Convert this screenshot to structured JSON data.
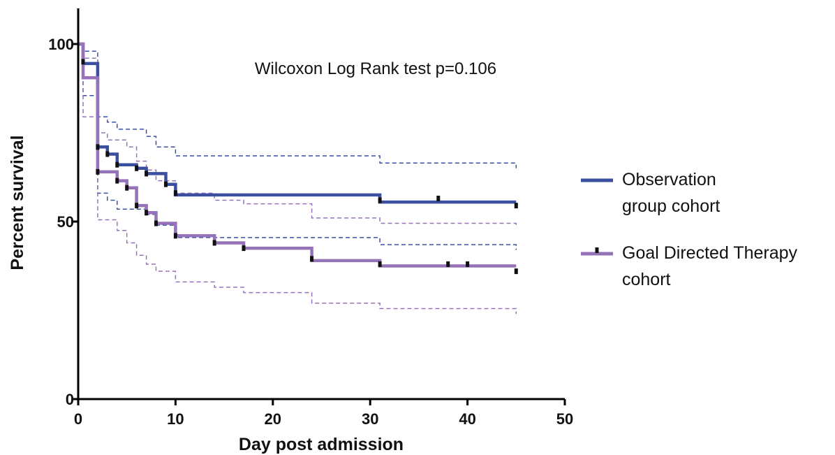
{
  "chart_data": {
    "type": "line",
    "subtype": "kaplan-meier step",
    "title": "",
    "annotation": "Wilcoxon Log Rank  test p=0.106",
    "xlabel": "Day post admission",
    "ylabel": "Percent survival",
    "xlim": [
      0,
      50
    ],
    "ylim": [
      0,
      100
    ],
    "xticks": [
      0,
      10,
      20,
      30,
      40,
      50
    ],
    "yticks": [
      0,
      50,
      100
    ],
    "grid": false,
    "legend": {
      "placement": "right",
      "entries": [
        {
          "series": 0,
          "lines": [
            "Observation",
            "group cohort"
          ]
        },
        {
          "series": 1,
          "lines": [
            "Goal Directed Therapy",
            "cohort"
          ]
        }
      ]
    },
    "series": [
      {
        "name": "Observation group cohort",
        "color": "#3a4fa0",
        "ci_color": "#3a4fa0",
        "steps": [
          [
            0,
            100
          ],
          [
            0.5,
            100
          ],
          [
            0.5,
            94.5
          ],
          [
            2,
            94.5
          ],
          [
            2,
            71
          ],
          [
            3,
            71
          ],
          [
            3,
            69
          ],
          [
            4,
            69
          ],
          [
            4,
            66
          ],
          [
            6,
            66
          ],
          [
            6,
            65
          ],
          [
            7,
            65
          ],
          [
            7,
            63.5
          ],
          [
            9,
            63.5
          ],
          [
            9,
            60.5
          ],
          [
            10,
            60.5
          ],
          [
            10,
            57.5
          ],
          [
            31,
            57.5
          ],
          [
            31,
            55.5
          ],
          [
            45,
            55.5
          ]
        ],
        "censor_marks": [
          [
            0.5,
            95
          ],
          [
            2,
            71
          ],
          [
            3,
            69
          ],
          [
            4,
            66
          ],
          [
            6,
            65
          ],
          [
            7,
            63.5
          ],
          [
            9,
            60.5
          ],
          [
            10,
            58
          ],
          [
            31,
            56
          ],
          [
            37,
            56.5
          ],
          [
            45,
            54.5
          ]
        ],
        "ci_upper": [
          [
            0,
            100
          ],
          [
            0.5,
            100
          ],
          [
            0.5,
            98
          ],
          [
            2,
            98
          ],
          [
            2,
            79.5
          ],
          [
            3,
            79.5
          ],
          [
            3,
            78
          ],
          [
            4,
            78
          ],
          [
            4,
            76
          ],
          [
            7,
            76
          ],
          [
            7,
            74
          ],
          [
            8,
            74
          ],
          [
            8,
            71
          ],
          [
            10,
            71
          ],
          [
            10,
            68.5
          ],
          [
            31,
            68.5
          ],
          [
            31,
            66.5
          ],
          [
            45,
            66.5
          ],
          [
            45,
            65
          ]
        ],
        "ci_lower": [
          [
            0,
            100
          ],
          [
            0.5,
            100
          ],
          [
            0.5,
            85.5
          ],
          [
            2,
            85.5
          ],
          [
            2,
            58
          ],
          [
            3,
            58
          ],
          [
            3,
            56
          ],
          [
            4,
            56
          ],
          [
            4,
            53.5
          ],
          [
            7,
            53.5
          ],
          [
            7,
            52
          ],
          [
            8,
            52
          ],
          [
            8,
            49
          ],
          [
            10,
            49
          ],
          [
            10,
            45.5
          ],
          [
            31,
            45.5
          ],
          [
            31,
            43.5
          ],
          [
            45,
            43.5
          ],
          [
            45,
            42
          ]
        ]
      },
      {
        "name": "Goal Directed Therapy cohort",
        "color": "#9673b9",
        "ci_color": "#9673b9",
        "steps": [
          [
            0,
            100
          ],
          [
            0.5,
            100
          ],
          [
            0.5,
            90.5
          ],
          [
            2,
            90.5
          ],
          [
            2,
            64
          ],
          [
            4,
            64
          ],
          [
            4,
            61.5
          ],
          [
            5,
            61.5
          ],
          [
            5,
            59.5
          ],
          [
            6,
            59.5
          ],
          [
            6,
            54.5
          ],
          [
            7,
            54.5
          ],
          [
            7,
            52.5
          ],
          [
            8,
            52.5
          ],
          [
            8,
            49.5
          ],
          [
            10,
            49.5
          ],
          [
            10,
            46
          ],
          [
            14,
            46
          ],
          [
            14,
            44
          ],
          [
            17,
            44
          ],
          [
            17,
            42.5
          ],
          [
            24,
            42.5
          ],
          [
            24,
            39
          ],
          [
            31,
            39
          ],
          [
            31,
            37.5
          ],
          [
            45,
            37.5
          ]
        ],
        "censor_marks": [
          [
            2,
            64
          ],
          [
            4,
            61.5
          ],
          [
            5,
            59.5
          ],
          [
            6,
            54.5
          ],
          [
            7,
            52.5
          ],
          [
            8,
            49.5
          ],
          [
            10,
            46
          ],
          [
            14,
            44
          ],
          [
            17,
            42.5
          ],
          [
            24,
            39.5
          ],
          [
            31,
            38
          ],
          [
            38,
            38
          ],
          [
            40,
            38
          ],
          [
            45,
            36
          ]
        ],
        "ci_upper": [
          [
            0,
            100
          ],
          [
            0.5,
            100
          ],
          [
            0.5,
            96
          ],
          [
            2,
            96
          ],
          [
            2,
            75
          ],
          [
            3,
            75
          ],
          [
            3,
            73
          ],
          [
            5,
            73
          ],
          [
            5,
            71
          ],
          [
            6,
            71
          ],
          [
            6,
            67
          ],
          [
            7,
            67
          ],
          [
            7,
            64.5
          ],
          [
            8,
            64.5
          ],
          [
            8,
            61.5
          ],
          [
            10,
            61.5
          ],
          [
            10,
            58
          ],
          [
            14,
            58
          ],
          [
            14,
            56
          ],
          [
            17,
            56
          ],
          [
            17,
            55
          ],
          [
            24,
            55
          ],
          [
            24,
            51
          ],
          [
            31,
            51
          ],
          [
            31,
            49.5
          ],
          [
            45,
            49.5
          ],
          [
            45,
            49
          ]
        ],
        "ci_lower": [
          [
            0,
            100
          ],
          [
            0.5,
            100
          ],
          [
            0.5,
            79.5
          ],
          [
            2,
            79.5
          ],
          [
            2,
            50.5
          ],
          [
            4,
            50.5
          ],
          [
            4,
            47.5
          ],
          [
            5,
            47.5
          ],
          [
            5,
            44
          ],
          [
            6,
            44
          ],
          [
            6,
            40.5
          ],
          [
            7,
            40.5
          ],
          [
            7,
            38
          ],
          [
            8,
            38
          ],
          [
            8,
            36
          ],
          [
            10,
            36
          ],
          [
            10,
            33
          ],
          [
            14,
            33
          ],
          [
            14,
            31.5
          ],
          [
            17,
            31.5
          ],
          [
            17,
            30
          ],
          [
            24,
            30
          ],
          [
            24,
            27
          ],
          [
            31,
            27
          ],
          [
            31,
            25.5
          ],
          [
            45,
            25.5
          ],
          [
            45,
            24
          ]
        ]
      }
    ]
  }
}
